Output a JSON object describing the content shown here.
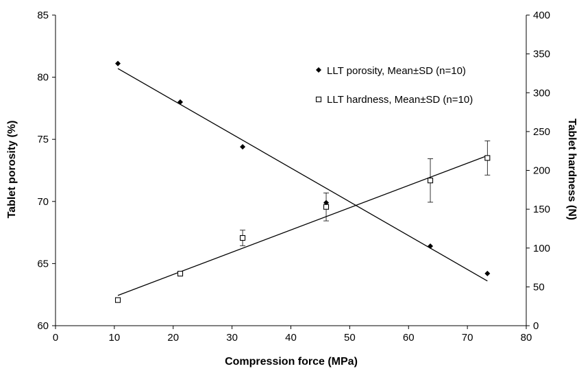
{
  "chart_data": {
    "type": "scatter",
    "xlabel": "Compression force (MPa)",
    "ylabel_left": "Tablet porosity (%)",
    "ylabel_right": "Tablet hardness (N)",
    "xlim": [
      0,
      80
    ],
    "ylim_left": [
      60,
      85
    ],
    "ylim_right": [
      0,
      400
    ],
    "x_ticks": [
      0,
      10,
      20,
      30,
      40,
      50,
      60,
      70,
      80
    ],
    "y_ticks_left": [
      60,
      65,
      70,
      75,
      80,
      85
    ],
    "y_ticks_right": [
      0,
      50,
      100,
      150,
      200,
      250,
      300,
      350,
      400
    ],
    "grid": false,
    "legend_position": "top-right",
    "series": [
      {
        "name": "LLT porosity, Mean±SD (n=10)",
        "axis": "left",
        "marker": "diamond-filled",
        "x": [
          10.6,
          21.2,
          31.8,
          46.0,
          63.7,
          73.4
        ],
        "y": [
          81.1,
          78.0,
          74.4,
          69.9,
          66.4,
          64.2
        ],
        "trendline": {
          "x": [
            10.6,
            73.4
          ],
          "y": [
            80.7,
            63.6
          ]
        }
      },
      {
        "name": "LLT hardness, Mean±SD (n=10)",
        "axis": "right",
        "marker": "square-open",
        "x": [
          10.6,
          21.2,
          31.8,
          46.0,
          63.7,
          73.4
        ],
        "y": [
          33,
          67,
          113,
          153,
          187,
          216
        ],
        "error": [
          0,
          0,
          10,
          18,
          28,
          22
        ],
        "trendline": {
          "x": [
            10.6,
            73.4
          ],
          "y": [
            39,
            219
          ]
        }
      }
    ]
  }
}
